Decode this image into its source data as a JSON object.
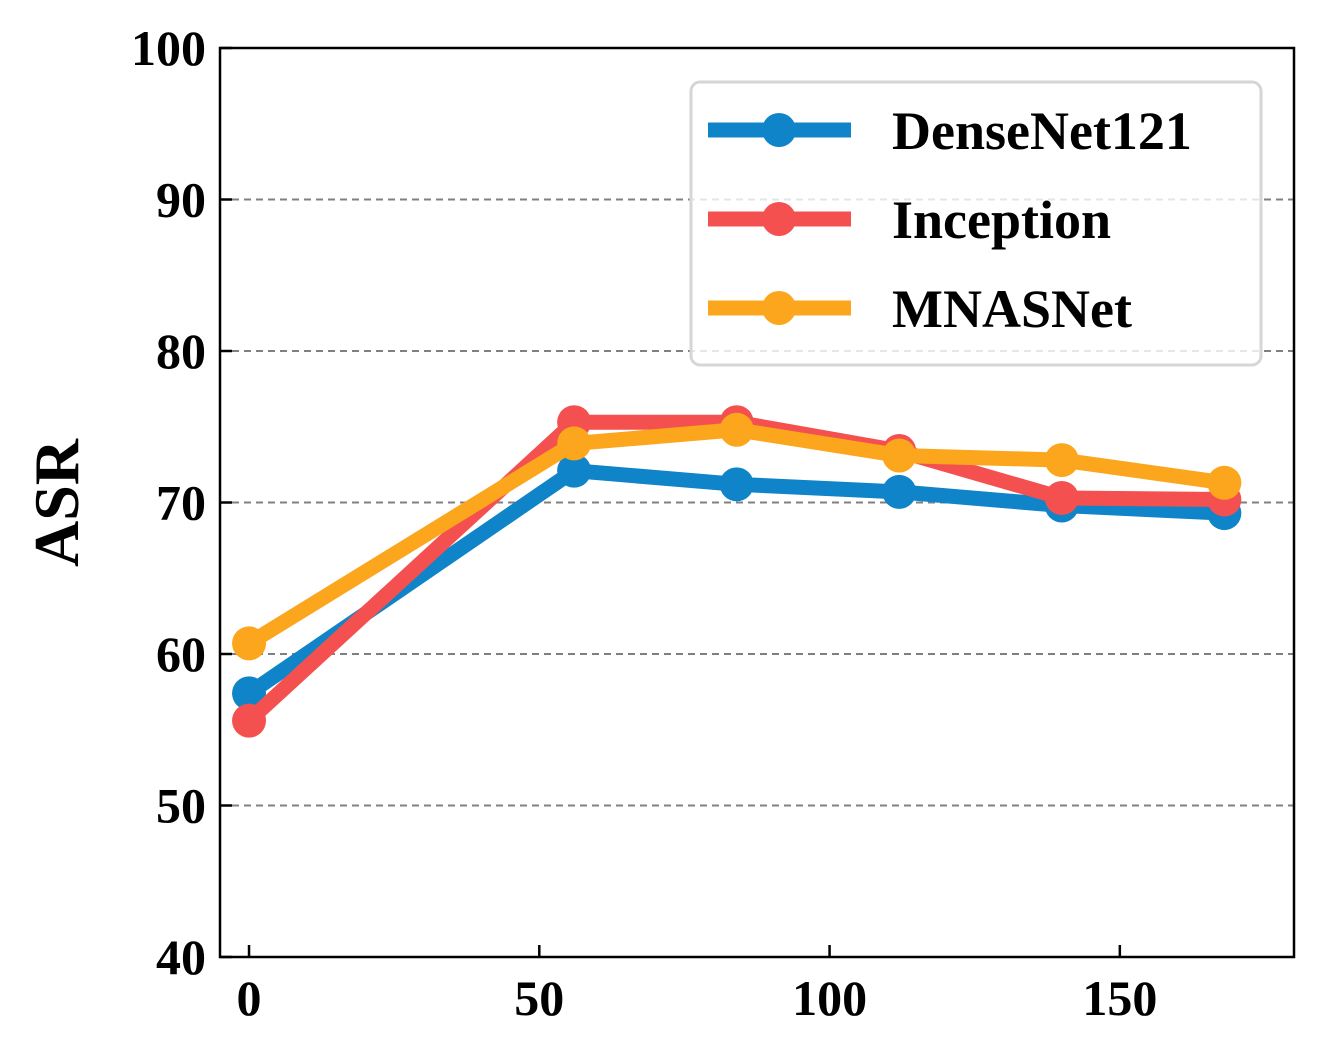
{
  "chart_data": {
    "type": "line",
    "title": "",
    "xlabel": "",
    "ylabel": "ASR",
    "xlim": [
      -5,
      180
    ],
    "ylim": [
      40,
      100
    ],
    "xticks": [
      0,
      50,
      100,
      150
    ],
    "yticks": [
      40,
      50,
      60,
      70,
      80,
      90,
      100
    ],
    "grid": "y-dashed",
    "legend_position": "top-right",
    "x": [
      0,
      56,
      84,
      112,
      140,
      168
    ],
    "series": [
      {
        "name": "DenseNet121",
        "color": "#1084c8",
        "values": [
          57.4,
          72.1,
          71.2,
          70.7,
          69.8,
          69.3
        ]
      },
      {
        "name": "Inception",
        "color": "#f55050",
        "values": [
          55.6,
          75.3,
          75.3,
          73.4,
          70.3,
          70.2
        ]
      },
      {
        "name": "MNASNet",
        "color": "#fba61c",
        "values": [
          60.7,
          73.9,
          74.8,
          73.1,
          72.8,
          71.3
        ]
      }
    ]
  }
}
